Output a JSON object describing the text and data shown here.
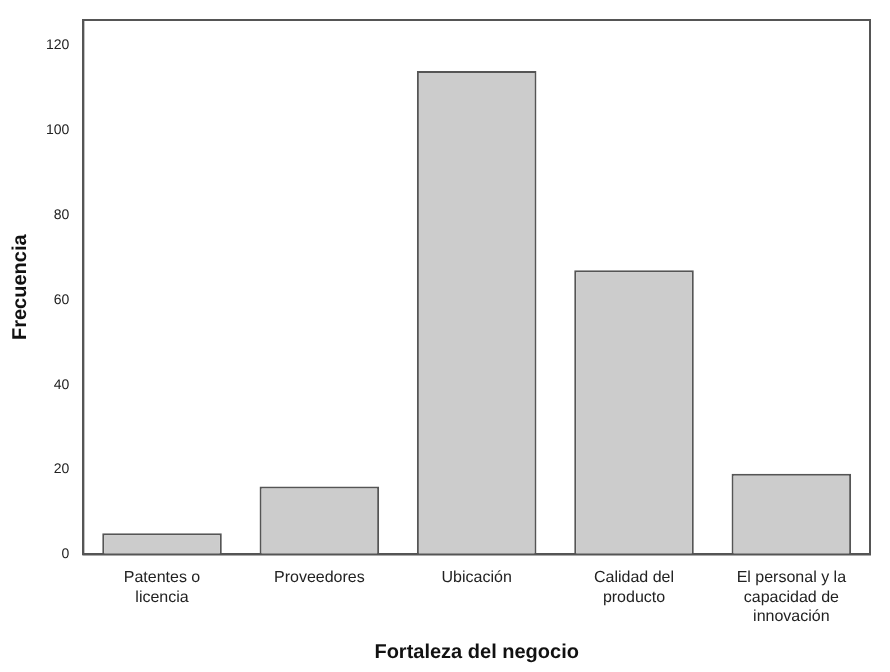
{
  "chart_data": {
    "type": "bar",
    "xlabel": "Fortaleza del negocio",
    "ylabel": "Frecuencia",
    "categories": [
      "Patentes o licencia",
      "Proveedores",
      "Ubicación",
      "Calidad del producto",
      "El personal y la capacidad de innovación"
    ],
    "values": [
      5,
      16,
      114,
      67,
      19
    ],
    "color": "#cccccc",
    "ylim": [
      0,
      126
    ],
    "yticks": [
      0,
      20,
      40,
      60,
      80,
      100,
      120
    ],
    "grid": false,
    "legend": false
  }
}
